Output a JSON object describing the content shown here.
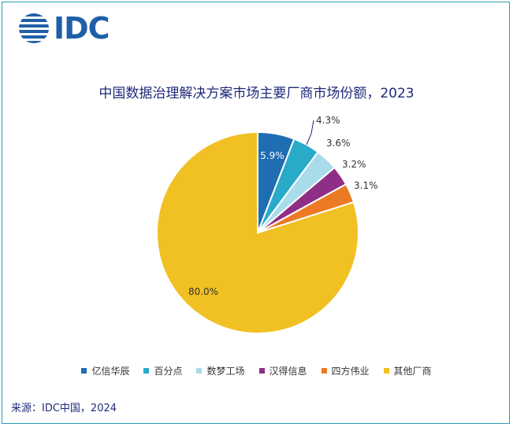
{
  "logo": {
    "text": "IDC",
    "icon": "idc-globe-icon",
    "color": "#1f5fa8"
  },
  "chart_data": {
    "type": "pie",
    "title": "中国数据治理解决方案市场主要厂商市场份额，2023",
    "unit": "%",
    "slices": [
      {
        "name": "亿信华辰",
        "value": 5.9,
        "label": "5.9%",
        "color": "#1f6db3"
      },
      {
        "name": "百分点",
        "value": 4.3,
        "label": "4.3%",
        "color": "#2aaac9"
      },
      {
        "name": "数梦工场",
        "value": 3.6,
        "label": "3.6%",
        "color": "#a9dcea"
      },
      {
        "name": "汉得信息",
        "value": 3.2,
        "label": "3.2%",
        "color": "#8e2e86"
      },
      {
        "name": "四方伟业",
        "value": 3.1,
        "label": "3.1%",
        "color": "#ec7a24"
      },
      {
        "name": "其他厂商",
        "value": 80.0,
        "label": "80.0%",
        "color": "#f1c022"
      }
    ],
    "legend_position": "bottom"
  },
  "source": "来源：IDC中国，2024"
}
